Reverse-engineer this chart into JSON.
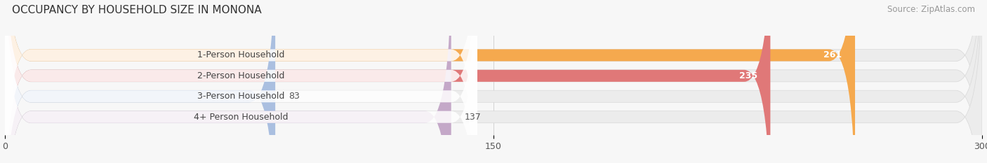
{
  "title": "OCCUPANCY BY HOUSEHOLD SIZE IN MONONA",
  "source": "Source: ZipAtlas.com",
  "categories": [
    "1-Person Household",
    "2-Person Household",
    "3-Person Household",
    "4+ Person Household"
  ],
  "values": [
    261,
    235,
    83,
    137
  ],
  "bar_colors": [
    "#F5A94E",
    "#E07878",
    "#AABFE0",
    "#C4A8C8"
  ],
  "label_colors": [
    "#555555",
    "#555555",
    "#555555",
    "#555555"
  ],
  "xlim": [
    0,
    300
  ],
  "xticks": [
    0,
    150,
    300
  ],
  "background_color": "#f7f7f7",
  "bar_bg_color": "#ececec",
  "title_fontsize": 11,
  "source_fontsize": 8.5,
  "label_fontsize": 9,
  "value_fontsize": 9,
  "bar_height": 0.58
}
